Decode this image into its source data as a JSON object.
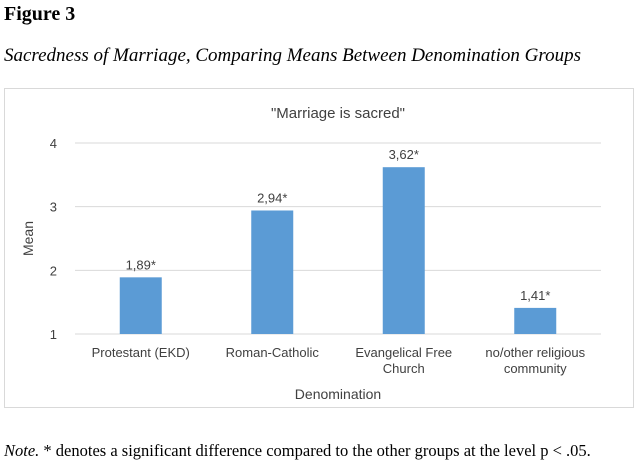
{
  "figure": {
    "label": "Figure 3",
    "caption": "Sacredness of Marriage, Comparing Means Between Denomination Groups"
  },
  "chart_data": {
    "type": "bar",
    "title": "\"Marriage is sacred\"",
    "xlabel": "Denomination",
    "ylabel": "Mean",
    "categories": [
      [
        "Protestant (EKD)"
      ],
      [
        "Roman-Catholic"
      ],
      [
        "Evangelical Free",
        "Church"
      ],
      [
        "no/other religious",
        "community"
      ]
    ],
    "values": [
      1.89,
      2.94,
      3.62,
      1.41
    ],
    "data_labels": [
      "1,89*",
      "2,94*",
      "3,62*",
      "1,41*"
    ],
    "ylim": [
      1,
      4
    ],
    "yticks": [
      1,
      2,
      3,
      4
    ],
    "ytick_labels": [
      "1",
      "2",
      "3",
      "4"
    ],
    "grid": true,
    "legend": "none",
    "bar_color": "#5b9bd5",
    "grid_color": "#d9d9d9"
  },
  "note": {
    "lead": "Note.",
    "text": " * denotes a significant difference compared to the other groups at the level p < .05."
  }
}
